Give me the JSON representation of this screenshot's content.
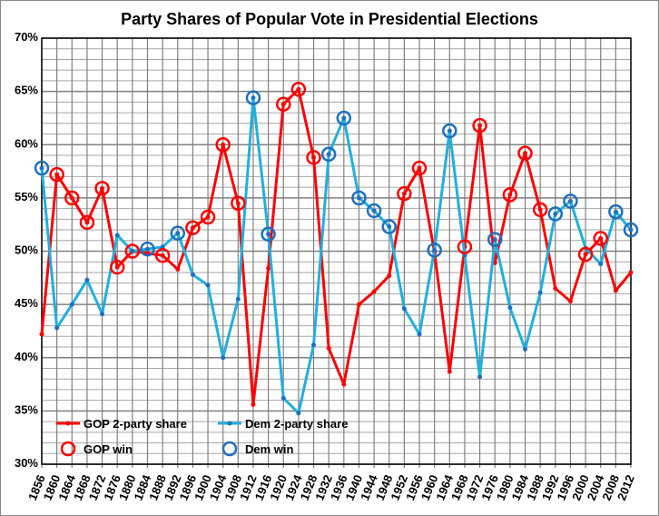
{
  "chart_data": {
    "type": "line",
    "title": "Party Shares of Popular Vote in Presidential Elections",
    "x": [
      1856,
      1860,
      1864,
      1868,
      1872,
      1876,
      1880,
      1884,
      1888,
      1892,
      1896,
      1900,
      1904,
      1908,
      1912,
      1916,
      1920,
      1924,
      1928,
      1932,
      1936,
      1940,
      1944,
      1948,
      1952,
      1956,
      1960,
      1964,
      1968,
      1972,
      1976,
      1980,
      1984,
      1988,
      1992,
      1996,
      2000,
      2004,
      2008,
      2012
    ],
    "ylim": [
      30,
      70
    ],
    "yticks": [
      30,
      35,
      40,
      45,
      50,
      55,
      60,
      65,
      70
    ],
    "ytick_format": "%",
    "grid": true,
    "legend_placement": "bottom-left",
    "colors": {
      "gop": "#ff0000",
      "dem": "#1fb0e0",
      "dem_win": "#1f6fbf"
    },
    "series": [
      {
        "name": "GOP 2-party share",
        "values": [
          42.2,
          57.2,
          55.0,
          52.7,
          55.9,
          48.5,
          50.0,
          49.8,
          49.6,
          48.3,
          52.2,
          53.2,
          60.0,
          54.5,
          35.6,
          48.4,
          63.8,
          65.2,
          58.8,
          40.9,
          37.5,
          45.0,
          46.2,
          47.7,
          55.4,
          57.8,
          49.9,
          38.7,
          50.4,
          61.8,
          48.9,
          55.3,
          59.2,
          53.9,
          46.5,
          45.3,
          49.7,
          51.2,
          46.3,
          48.0
        ]
      },
      {
        "name": "Dem 2-party share",
        "values": [
          57.8,
          42.8,
          45.0,
          47.3,
          44.1,
          51.5,
          50.0,
          50.2,
          50.4,
          51.7,
          47.8,
          46.8,
          40.0,
          45.5,
          64.4,
          51.6,
          36.2,
          34.8,
          41.2,
          59.1,
          62.5,
          55.0,
          53.8,
          52.3,
          44.6,
          42.2,
          50.1,
          61.3,
          49.6,
          38.2,
          51.1,
          44.7,
          40.8,
          46.1,
          53.5,
          54.7,
          50.3,
          48.8,
          53.7,
          52.0
        ]
      }
    ],
    "markers": [
      {
        "name": "GOP win",
        "series": 0
      },
      {
        "name": "Dem win",
        "series": 1
      }
    ]
  }
}
